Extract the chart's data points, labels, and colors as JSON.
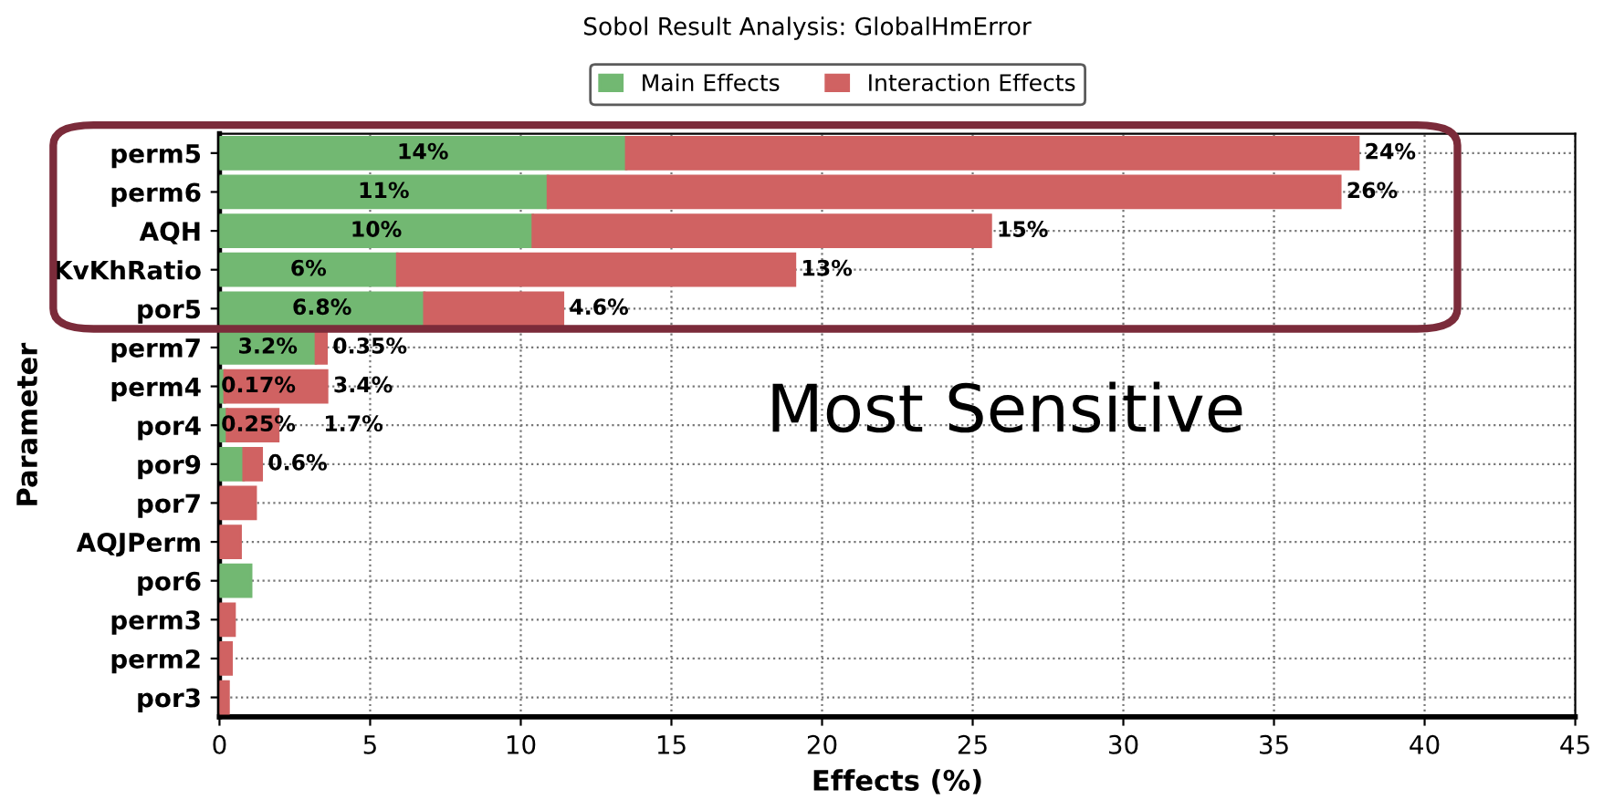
{
  "chart_data": {
    "type": "bar",
    "orientation": "horizontal",
    "stacked": true,
    "title": "Sobol Result Analysis: GlobalHmError",
    "xlabel": "Effects (%)",
    "ylabel": "Parameter",
    "categories": [
      "perm5",
      "perm6",
      "AQH",
      "KvKhRatio",
      "por5",
      "perm7",
      "perm4",
      "por4",
      "por9",
      "por7",
      "AQJPerm",
      "por6",
      "perm3",
      "perm2",
      "por3"
    ],
    "series": [
      {
        "name": "Main Effects",
        "color": "#72b872",
        "values": [
          13.5,
          10.9,
          10.4,
          5.9,
          6.8,
          3.2,
          0.17,
          0.25,
          0.8,
          null,
          null,
          1.05,
          null,
          null,
          null
        ],
        "value_labels": [
          "14%",
          "11%",
          "10%",
          "6%",
          "6.8%",
          "3.2%",
          "0.17%",
          "0.25%",
          null,
          null,
          null,
          null,
          null,
          null,
          null
        ]
      },
      {
        "name": "Interaction Effects",
        "color": "#d06262",
        "values": [
          24.3,
          26.3,
          15.2,
          13.2,
          4.6,
          0.35,
          3.4,
          1.7,
          0.6,
          1.2,
          0.7,
          null,
          0.5,
          0.4,
          0.3
        ],
        "value_labels": [
          "24%",
          "26%",
          "15%",
          "13%",
          "4.6%",
          "0.35%",
          "3.4%",
          "1.7%",
          "0.6%",
          null,
          null,
          null,
          null,
          null,
          null
        ]
      }
    ],
    "xlim": [
      0,
      45
    ],
    "xticks": [
      0,
      5,
      10,
      15,
      20,
      25,
      30,
      35,
      40,
      45
    ],
    "grid": true,
    "legend": "top",
    "annotations": [
      "Most Sensitive"
    ]
  }
}
